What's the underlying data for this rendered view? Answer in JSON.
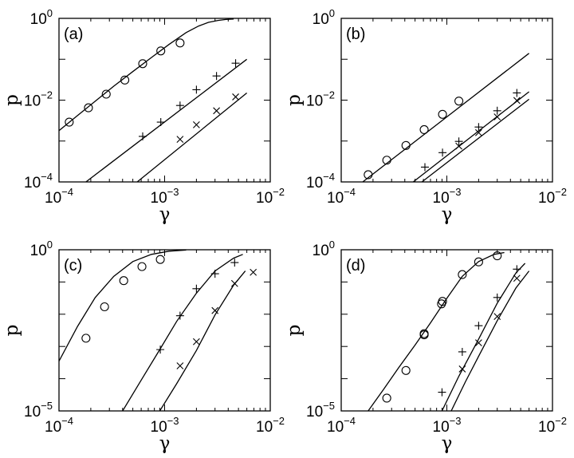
{
  "chart_data": [
    {
      "type": "scatter",
      "panel_label": "(a)",
      "xlabel": "γ",
      "ylabel": "p",
      "xscale": "log",
      "yscale": "log",
      "xlim": [
        0.0001,
        0.01
      ],
      "ylim": [
        0.0001,
        1
      ],
      "x_ticks": [
        {
          "base": "10",
          "exp": "−4"
        },
        {
          "base": "10",
          "exp": "−3"
        },
        {
          "base": "10",
          "exp": "−2"
        }
      ],
      "y_ticks": [
        {
          "base": "10",
          "exp": "−4"
        },
        {
          "base": "10",
          "exp": "−2"
        },
        {
          "base": "10",
          "exp": "0"
        }
      ],
      "series": [
        {
          "marker": "circle",
          "x": [
            0.000125,
            0.00019,
            0.00028,
            0.00042,
            0.00062,
            0.00092,
            0.0014
          ],
          "y": [
            0.0029,
            0.0065,
            0.014,
            0.031,
            0.078,
            0.16,
            0.25
          ]
        },
        {
          "marker": "plus",
          "x": [
            0.00062,
            0.00092,
            0.0014,
            0.002,
            0.0031,
            0.0047
          ],
          "y": [
            0.0013,
            0.0029,
            0.0074,
            0.018,
            0.039,
            0.08
          ]
        },
        {
          "marker": "cross",
          "x": [
            0.0014,
            0.002,
            0.0031,
            0.0047
          ],
          "y": [
            0.0011,
            0.0025,
            0.0055,
            0.012
          ]
        }
      ],
      "fits": [
        {
          "x": [
            0.0001,
            0.00015,
            0.00022,
            0.00033,
            0.0005,
            0.00075,
            0.0011,
            0.0016,
            0.0021,
            0.0026,
            0.0032,
            0.0038,
            0.0045
          ],
          "y": [
            0.0018,
            0.0042,
            0.0094,
            0.022,
            0.05,
            0.11,
            0.23,
            0.45,
            0.65,
            0.8,
            0.89,
            0.94,
            0.96
          ]
        },
        {
          "x": [
            0.00018,
            0.006
          ],
          "y": [
            0.0001,
            0.1
          ]
        },
        {
          "x": [
            0.00055,
            0.006
          ],
          "y": [
            0.0001,
            0.015
          ]
        }
      ]
    },
    {
      "type": "scatter",
      "panel_label": "(b)",
      "xlabel": "γ",
      "ylabel": "p",
      "xscale": "log",
      "yscale": "log",
      "xlim": [
        0.0001,
        0.01
      ],
      "ylim": [
        0.0001,
        1
      ],
      "x_ticks": [
        {
          "base": "10",
          "exp": "−4"
        },
        {
          "base": "10",
          "exp": "−3"
        },
        {
          "base": "10",
          "exp": "−2"
        }
      ],
      "y_ticks": [
        {
          "base": "10",
          "exp": "−4"
        },
        {
          "base": "10",
          "exp": "−2"
        },
        {
          "base": "10",
          "exp": "0"
        }
      ],
      "series": [
        {
          "marker": "circle",
          "x": [
            0.00018,
            0.00027,
            0.00041,
            0.00061,
            0.00091,
            0.0013
          ],
          "y": [
            0.00015,
            0.00034,
            0.00078,
            0.0019,
            0.0045,
            0.0095
          ]
        },
        {
          "marker": "plus",
          "x": [
            0.00062,
            0.00091,
            0.0013,
            0.002,
            0.003,
            0.0046
          ],
          "y": [
            0.00023,
            0.00052,
            0.00098,
            0.0022,
            0.0055,
            0.015
          ]
        },
        {
          "marker": "cross",
          "x": [
            0.0013,
            0.002,
            0.003,
            0.0046
          ],
          "y": [
            0.00075,
            0.0016,
            0.0039,
            0.0098
          ]
        }
      ],
      "fits": [
        {
          "x": [
            0.00016,
            0.006
          ],
          "y": [
            0.0001,
            0.14
          ]
        },
        {
          "x": [
            0.00048,
            0.006
          ],
          "y": [
            0.0001,
            0.016
          ]
        },
        {
          "x": [
            0.00058,
            0.006
          ],
          "y": [
            0.0001,
            0.0105
          ]
        }
      ]
    },
    {
      "type": "scatter",
      "panel_label": "(c)",
      "xlabel": "γ",
      "ylabel": "p",
      "xscale": "log",
      "yscale": "log",
      "xlim": [
        0.0001,
        0.01
      ],
      "ylim": [
        1e-05,
        1
      ],
      "x_ticks": [
        {
          "base": "10",
          "exp": "−4"
        },
        {
          "base": "10",
          "exp": "−3"
        },
        {
          "base": "10",
          "exp": "−2"
        }
      ],
      "y_ticks": [
        {
          "base": "10",
          "exp": "−5"
        },
        {
          "base": "10",
          "exp": "0"
        }
      ],
      "series": [
        {
          "marker": "circle",
          "x": [
            0.00018,
            0.00027,
            0.00041,
            0.00061,
            0.00091
          ],
          "y": [
            0.0018,
            0.017,
            0.11,
            0.3,
            0.5
          ]
        },
        {
          "marker": "plus",
          "x": [
            0.00091,
            0.0014,
            0.002,
            0.003,
            0.0046
          ],
          "y": [
            0.0008,
            0.009,
            0.062,
            0.18,
            0.4
          ]
        },
        {
          "marker": "cross",
          "x": [
            0.0014,
            0.002,
            0.003,
            0.0046,
            0.0069
          ],
          "y": [
            0.00025,
            0.0014,
            0.013,
            0.09,
            0.2
          ]
        }
      ],
      "fits": [
        {
          "x": [
            0.0001,
            0.00015,
            0.00022,
            0.00033,
            0.0005,
            0.00075,
            0.0011,
            0.0016
          ],
          "y": [
            0.00035,
            0.0042,
            0.033,
            0.15,
            0.43,
            0.72,
            0.9,
            0.98
          ]
        },
        {
          "x": [
            0.0004,
            0.0006,
            0.0009,
            0.0013,
            0.002,
            0.003,
            0.0045,
            0.0055
          ],
          "y": [
            1e-05,
            9e-05,
            0.0008,
            0.006,
            0.045,
            0.22,
            0.55,
            0.72
          ]
        },
        {
          "x": [
            0.0009,
            0.0013,
            0.002,
            0.003,
            0.0045,
            0.0058
          ],
          "y": [
            1e-05,
            7e-05,
            0.00075,
            0.0095,
            0.08,
            0.22
          ]
        }
      ]
    },
    {
      "type": "scatter",
      "panel_label": "(d)",
      "xlabel": "γ",
      "ylabel": "p",
      "xscale": "log",
      "yscale": "log",
      "xlim": [
        0.0001,
        0.01
      ],
      "ylim": [
        1e-05,
        1
      ],
      "x_ticks": [
        {
          "base": "10",
          "exp": "−4"
        },
        {
          "base": "10",
          "exp": "−3"
        },
        {
          "base": "10",
          "exp": "−2"
        }
      ],
      "y_ticks": [
        {
          "base": "10",
          "exp": "−5"
        },
        {
          "base": "10",
          "exp": "0"
        }
      ],
      "series": [
        {
          "marker": "circle",
          "x": [
            0.00027,
            0.00041,
            0.00061,
            0.00061,
            0.00089,
            0.00091,
            0.0014,
            0.002,
            0.003
          ],
          "y": [
            2.5e-05,
            0.00018,
            0.0025,
            0.0023,
            0.021,
            0.025,
            0.17,
            0.42,
            0.65
          ]
        },
        {
          "marker": "plus",
          "x": [
            0.0009,
            0.0014,
            0.002,
            0.003,
            0.0046
          ],
          "y": [
            3.8e-05,
            0.00068,
            0.0044,
            0.033,
            0.25
          ]
        },
        {
          "marker": "cross",
          "x": [
            0.0014,
            0.002,
            0.003,
            0.0046
          ],
          "y": [
            0.0002,
            0.0013,
            0.0085,
            0.13
          ]
        }
      ],
      "fits": [
        {
          "x": [
            0.00018,
            0.00025,
            0.00035,
            0.0005,
            0.0007,
            0.001,
            0.0014,
            0.002,
            0.0028,
            0.0035
          ],
          "y": [
            1e-05,
            4.5e-05,
            0.00022,
            0.0011,
            0.0054,
            0.031,
            0.15,
            0.43,
            0.72,
            0.82
          ]
        },
        {
          "x": [
            0.0009,
            0.0013,
            0.002,
            0.003,
            0.0045,
            0.0055
          ],
          "y": [
            1e-05,
            0.00012,
            0.0017,
            0.022,
            0.19,
            0.38
          ]
        },
        {
          "x": [
            0.0011,
            0.0015,
            0.002,
            0.003,
            0.0045,
            0.006
          ],
          "y": [
            1e-05,
            8e-05,
            0.0005,
            0.0063,
            0.065,
            0.22
          ]
        }
      ]
    }
  ]
}
